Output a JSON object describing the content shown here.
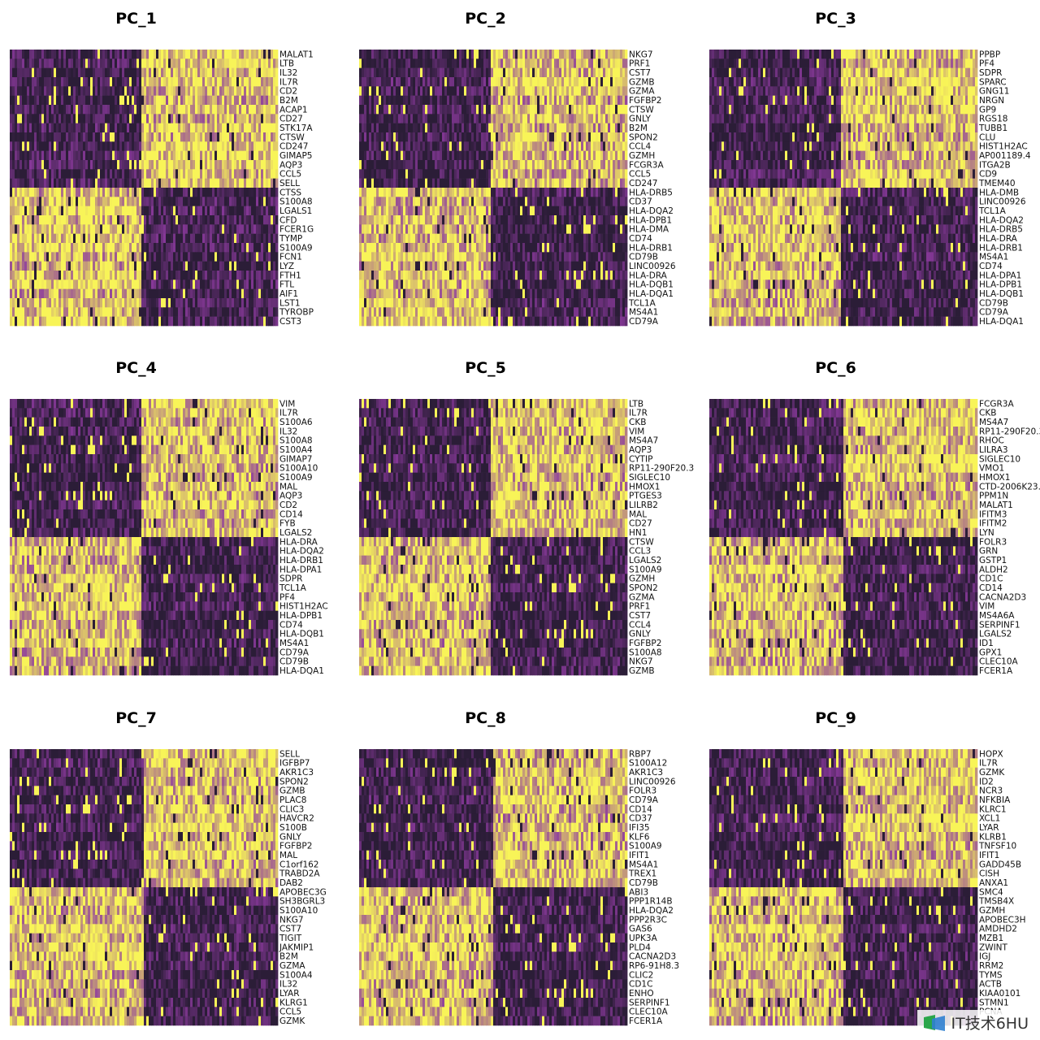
{
  "chart_data": [
    {
      "type": "heatmap",
      "title": "PC_1",
      "genes": [
        "MALAT1",
        "LTB",
        "IL32",
        "IL7R",
        "CD2",
        "B2M",
        "ACAP1",
        "CD27",
        "STK17A",
        "CTSW",
        "CD247",
        "GIMAP5",
        "AQP3",
        "CCL5",
        "SELL",
        "CTSS",
        "S100A8",
        "LGALS1",
        "CFD",
        "FCER1G",
        "TYMP",
        "S100A9",
        "FCN1",
        "LYZ",
        "FTH1",
        "FTL",
        "AIF1",
        "LST1",
        "TYROBP",
        "CST3"
      ],
      "split": 0.49,
      "pattern": [
        1,
        1,
        1,
        1,
        1,
        1,
        1,
        1,
        1,
        1,
        1,
        1,
        1,
        1,
        1,
        -1,
        -1,
        -1,
        -1,
        -1,
        -1,
        -1,
        -1,
        -1,
        -1,
        -1,
        -1,
        -1,
        -1,
        -1
      ]
    },
    {
      "type": "heatmap",
      "title": "PC_2",
      "genes": [
        "NKG7",
        "PRF1",
        "CST7",
        "GZMB",
        "GZMA",
        "FGFBP2",
        "CTSW",
        "GNLY",
        "B2M",
        "SPON2",
        "CCL4",
        "GZMH",
        "FCGR3A",
        "CCL5",
        "CD247",
        "HLA-DRB5",
        "CD37",
        "HLA-DQA2",
        "HLA-DPB1",
        "HLA-DMA",
        "CD74",
        "HLA-DRB1",
        "CD79B",
        "LINC00926",
        "HLA-DRA",
        "HLA-DQB1",
        "HLA-DQA1",
        "TCL1A",
        "MS4A1",
        "CD79A"
      ],
      "split": 0.49,
      "pattern": [
        1,
        1,
        1,
        1,
        1,
        1,
        1,
        1,
        1,
        1,
        1,
        1,
        1,
        1,
        1,
        -1,
        -1,
        -1,
        -1,
        -1,
        -1,
        -1,
        -1,
        -1,
        -1,
        -1,
        -1,
        -1,
        -1,
        -1
      ]
    },
    {
      "type": "heatmap",
      "title": "PC_3",
      "genes": [
        "PPBP",
        "PF4",
        "SDPR",
        "SPARC",
        "GNG11",
        "NRGN",
        "GP9",
        "RGS18",
        "TUBB1",
        "CLU",
        "HIST1H2AC",
        "AP001189.4",
        "ITGA2B",
        "CD9",
        "TMEM40",
        "HLA-DMB",
        "LINC00926",
        "TCL1A",
        "HLA-DQA2",
        "HLA-DRB5",
        "HLA-DRA",
        "HLA-DRB1",
        "MS4A1",
        "CD74",
        "HLA-DPA1",
        "HLA-DPB1",
        "HLA-DQB1",
        "CD79B",
        "CD79A",
        "HLA-DQA1"
      ],
      "split": 0.49,
      "pattern": [
        1,
        1,
        1,
        1,
        1,
        1,
        1,
        1,
        1,
        1,
        1,
        1,
        1,
        1,
        1,
        -1,
        -1,
        -1,
        -1,
        -1,
        -1,
        -1,
        -1,
        -1,
        -1,
        -1,
        -1,
        -1,
        -1,
        -1
      ]
    },
    {
      "type": "heatmap",
      "title": "PC_4",
      "genes": [
        "VIM",
        "IL7R",
        "S100A6",
        "IL32",
        "S100A8",
        "S100A4",
        "GIMAP7",
        "S100A10",
        "S100A9",
        "MAL",
        "AQP3",
        "CD2",
        "CD14",
        "FYB",
        "LGALS2",
        "HLA-DRA",
        "HLA-DQA2",
        "HLA-DRB1",
        "HLA-DPA1",
        "SDPR",
        "TCL1A",
        "PF4",
        "HIST1H2AC",
        "HLA-DPB1",
        "CD74",
        "HLA-DQB1",
        "MS4A1",
        "CD79A",
        "CD79B",
        "HLA-DQA1"
      ],
      "split": 0.49,
      "pattern": [
        1,
        1,
        1,
        1,
        1,
        1,
        1,
        1,
        1,
        1,
        1,
        1,
        1,
        1,
        1,
        -1,
        -1,
        -1,
        -1,
        -1,
        -1,
        -1,
        -1,
        -1,
        -1,
        -1,
        -1,
        -1,
        -1,
        -1
      ]
    },
    {
      "type": "heatmap",
      "title": "PC_5",
      "genes": [
        "LTB",
        "IL7R",
        "CKB",
        "VIM",
        "MS4A7",
        "AQP3",
        "CYTIP",
        "RP11-290F20.3",
        "SIGLEC10",
        "HMOX1",
        "PTGES3",
        "LILRB2",
        "MAL",
        "CD27",
        "HN1",
        "CTSW",
        "CCL3",
        "LGALS2",
        "S100A9",
        "GZMH",
        "SPON2",
        "GZMA",
        "PRF1",
        "CST7",
        "CCL4",
        "GNLY",
        "FGFBP2",
        "S100A8",
        "NKG7",
        "GZMB"
      ],
      "split": 0.49,
      "pattern": [
        1,
        1,
        1,
        1,
        1,
        1,
        1,
        1,
        1,
        1,
        1,
        1,
        1,
        1,
        1,
        -1,
        -1,
        -1,
        -1,
        -1,
        -1,
        -1,
        -1,
        -1,
        -1,
        -1,
        -1,
        -1,
        -1,
        -1
      ]
    },
    {
      "type": "heatmap",
      "title": "PC_6",
      "genes": [
        "FCGR3A",
        "CKB",
        "MS4A7",
        "RP11-290F20.3",
        "RHOC",
        "LILRA3",
        "SIGLEC10",
        "VMO1",
        "HMOX1",
        "CTD-2006K23.1",
        "PPM1N",
        "MALAT1",
        "IFITM3",
        "IFITM2",
        "LYN",
        "FOLR3",
        "GRN",
        "GSTP1",
        "ALDH2",
        "CD1C",
        "CD14",
        "CACNA2D3",
        "VIM",
        "MS4A6A",
        "SERPINF1",
        "LGALS2",
        "ID1",
        "GPX1",
        "CLEC10A",
        "FCER1A"
      ],
      "split": 0.5,
      "pattern": [
        1,
        1,
        1,
        1,
        1,
        1,
        1,
        1,
        1,
        1,
        1,
        1,
        1,
        1,
        1,
        -1,
        -1,
        -1,
        -1,
        -1,
        -1,
        -1,
        -1,
        -1,
        -1,
        -1,
        -1,
        -1,
        -1,
        -1
      ]
    },
    {
      "type": "heatmap",
      "title": "PC_7",
      "genes": [
        "SELL",
        "IGFBP7",
        "AKR1C3",
        "SPON2",
        "GZMB",
        "PLAC8",
        "CLIC3",
        "HAVCR2",
        "S100B",
        "GNLY",
        "FGFBP2",
        "MAL",
        "C1orf162",
        "TRABD2A",
        "DAB2",
        "APOBEC3G",
        "SH3BGRL3",
        "S100A10",
        "NKG7",
        "CST7",
        "TIGIT",
        "JAKMIP1",
        "B2M",
        "GZMA",
        "S100A4",
        "IL32",
        "LYAR",
        "KLRG1",
        "CCL5",
        "GZMK"
      ],
      "split": 0.5,
      "pattern": [
        1,
        1,
        1,
        1,
        1,
        1,
        1,
        1,
        1,
        1,
        1,
        1,
        1,
        1,
        1,
        -1,
        -1,
        -1,
        -1,
        -1,
        -1,
        -1,
        -1,
        -1,
        -1,
        -1,
        -1,
        -1,
        -1,
        -1
      ]
    },
    {
      "type": "heatmap",
      "title": "PC_8",
      "genes": [
        "RBP7",
        "S100A12",
        "AKR1C3",
        "LINC00926",
        "FOLR3",
        "CD79A",
        "CD14",
        "CD37",
        "IFI35",
        "KLF6",
        "S100A9",
        "IFIT1",
        "MS4A1",
        "TREX1",
        "CD79B",
        "ABI3",
        "PPP1R14B",
        "HLA-DQA2",
        "PPP2R3C",
        "GAS6",
        "UPK3A",
        "PLD4",
        "CACNA2D3",
        "RP6-91H8.3",
        "CLIC2",
        "CD1C",
        "ENHO",
        "SERPINF1",
        "CLEC10A",
        "FCER1A"
      ],
      "split": 0.5,
      "pattern": [
        1,
        1,
        1,
        1,
        1,
        1,
        1,
        1,
        1,
        1,
        1,
        1,
        1,
        1,
        1,
        -1,
        -1,
        -1,
        -1,
        -1,
        -1,
        -1,
        -1,
        -1,
        -1,
        -1,
        -1,
        -1,
        -1,
        -1
      ]
    },
    {
      "type": "heatmap",
      "title": "PC_9",
      "genes": [
        "HOPX",
        "IL7R",
        "GZMK",
        "ID2",
        "NCR3",
        "NFKBIA",
        "KLRC1",
        "XCL1",
        "LYAR",
        "KLRB1",
        "TNFSF10",
        "IFIT1",
        "GADD45B",
        "CISH",
        "ANXA1",
        "SMC4",
        "TMSB4X",
        "GZMH",
        "APOBEC3H",
        "AMDHD2",
        "MZB1",
        "ZWINT",
        "IGJ",
        "RRM2",
        "TYMS",
        "ACTB",
        "KIAA0101",
        "STMN1",
        "PCNA",
        ""
      ],
      "split": 0.5,
      "pattern": [
        1,
        1,
        1,
        1,
        1,
        1,
        1,
        1,
        1,
        1,
        1,
        1,
        1,
        1,
        1,
        -1,
        -1,
        -1,
        -1,
        -1,
        -1,
        -1,
        -1,
        -1,
        -1,
        -1,
        -1,
        -1,
        -1,
        -1
      ]
    }
  ],
  "colors": {
    "low": "#2b1d37",
    "mid": "#8c3a9e",
    "high": "#f8f458"
  },
  "watermark": {
    "text": "IT技术6HU"
  }
}
